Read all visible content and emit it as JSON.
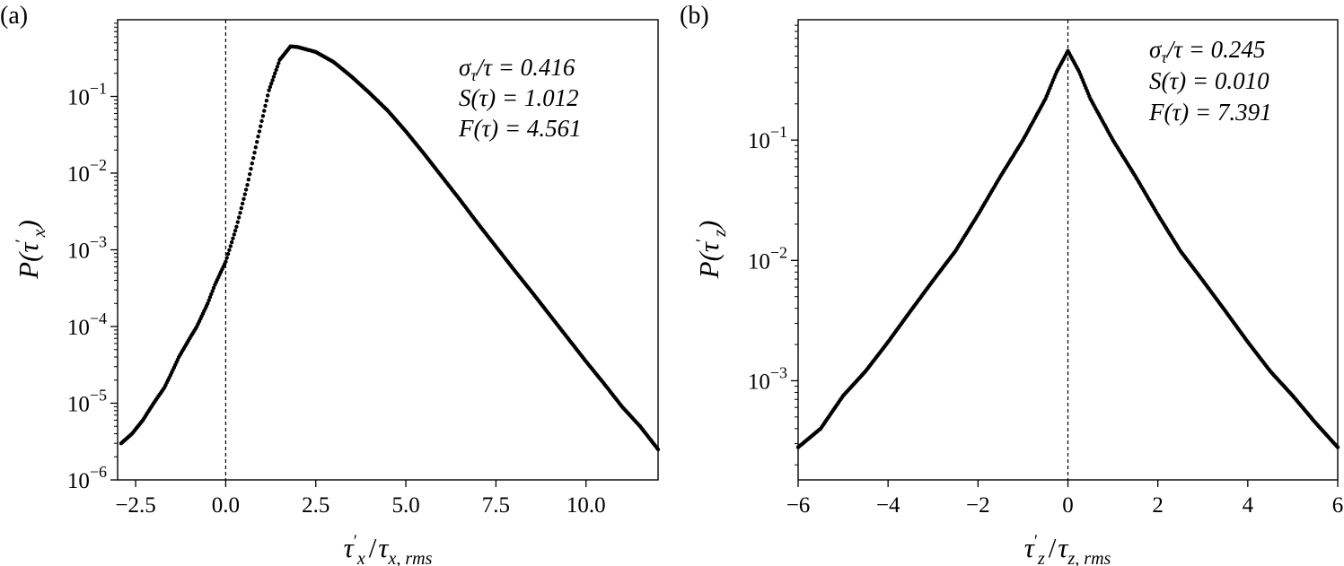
{
  "chart_data": [
    {
      "panel": "(a)",
      "type": "scatter",
      "yscale": "log",
      "xlim": [
        -3.0,
        12.0
      ],
      "ylim": [
        1e-06,
        1.0
      ],
      "xticks": [
        -2.5,
        0.0,
        2.5,
        5.0,
        7.5,
        10.0
      ],
      "xtick_labels": [
        "−2.5",
        "0.0",
        "2.5",
        "5.0",
        "7.5",
        "10.0"
      ],
      "yticks": [
        1e-06,
        1e-05,
        0.0001,
        0.001,
        0.01,
        0.1
      ],
      "ytick_labels": [
        [
          "10",
          "−6"
        ],
        [
          "10",
          "−5"
        ],
        [
          "10",
          "−4"
        ],
        [
          "10",
          "−3"
        ],
        [
          "10",
          "−2"
        ],
        [
          "10",
          "−1"
        ]
      ],
      "xlabel": {
        "t1": "τ",
        "t2": "′",
        "t3": "x",
        "t4": "/",
        "t5": "τ",
        "t6": "x, rms"
      },
      "ylabel": {
        "t1": "P(",
        "t2": "τ",
        "t3": "′",
        "t4": "x",
        "t5": ")"
      },
      "vline_x": 0.0,
      "annotations": [
        {
          "t1": "σ",
          "t2": "τ",
          "t3": "/τ = 0.416"
        },
        {
          "t1": "S(τ) = 1.012"
        },
        {
          "t1": "F(τ) = 4.561"
        }
      ],
      "series": [
        {
          "x": [
            -2.9,
            -2.6,
            -2.3,
            -2.0,
            -1.7,
            -1.5,
            -1.3,
            -1.0,
            -0.8,
            -0.5,
            -0.3,
            0.0,
            0.3,
            0.6,
            0.9,
            1.2,
            1.5,
            1.8,
            2.0,
            2.5,
            3.0,
            3.5,
            4.0,
            4.5,
            5.0,
            5.5,
            6.0,
            6.5,
            7.0,
            7.5,
            8.0,
            8.5,
            9.0,
            9.5,
            10.0,
            10.5,
            11.0,
            11.5,
            12.0
          ],
          "y": [
            3e-06,
            4e-06,
            6e-06,
            1e-05,
            1.6e-05,
            2.5e-05,
            4e-05,
            7e-05,
            0.0001,
            0.0002,
            0.00035,
            0.0007,
            0.002,
            0.007,
            0.03,
            0.12,
            0.3,
            0.45,
            0.44,
            0.38,
            0.28,
            0.18,
            0.11,
            0.065,
            0.035,
            0.018,
            0.009,
            0.0045,
            0.0022,
            0.0011,
            0.00055,
            0.00028,
            0.00014,
            7e-05,
            3.5e-05,
            1.8e-05,
            9e-06,
            5e-06,
            2.5e-06
          ]
        }
      ]
    },
    {
      "panel": "(b)",
      "type": "scatter",
      "yscale": "log",
      "xlim": [
        -6.0,
        6.0
      ],
      "ylim": [
        0.00015,
        1.0
      ],
      "xticks": [
        -6,
        -4,
        -2,
        0,
        2,
        4,
        6
      ],
      "xtick_labels": [
        "−6",
        "−4",
        "−2",
        "0",
        "2",
        "4",
        "6"
      ],
      "yticks": [
        0.001,
        0.01,
        0.1
      ],
      "ytick_labels": [
        [
          "10",
          "−3"
        ],
        [
          "10",
          "−2"
        ],
        [
          "10",
          "−1"
        ]
      ],
      "xlabel": {
        "t1": "τ",
        "t2": "′",
        "t3": "z",
        "t4": "/",
        "t5": "τ",
        "t6": "z, rms"
      },
      "ylabel": {
        "t1": "P(",
        "t2": "τ",
        "t3": "′",
        "t4": "z",
        "t5": ")"
      },
      "vline_x": 0.0,
      "annotations": [
        {
          "t1": "σ",
          "t2": "τ",
          "t3": "/τ = 0.245"
        },
        {
          "t1": "S(τ) = 0.010"
        },
        {
          "t1": "F(τ) = 7.391"
        }
      ],
      "series": [
        {
          "x": [
            -6.0,
            -5.5,
            -5.0,
            -4.5,
            -4.0,
            -3.5,
            -3.0,
            -2.5,
            -2.0,
            -1.5,
            -1.0,
            -0.5,
            -0.25,
            0.0,
            0.25,
            0.5,
            1.0,
            1.5,
            2.0,
            2.5,
            3.0,
            3.5,
            4.0,
            4.5,
            5.0,
            5.5,
            6.0
          ],
          "y": [
            0.00028,
            0.0004,
            0.00075,
            0.0012,
            0.0021,
            0.0038,
            0.0068,
            0.012,
            0.024,
            0.05,
            0.1,
            0.22,
            0.37,
            0.55,
            0.37,
            0.22,
            0.1,
            0.05,
            0.024,
            0.012,
            0.0068,
            0.0038,
            0.0021,
            0.0012,
            0.00075,
            0.00045,
            0.00028
          ]
        }
      ]
    }
  ]
}
